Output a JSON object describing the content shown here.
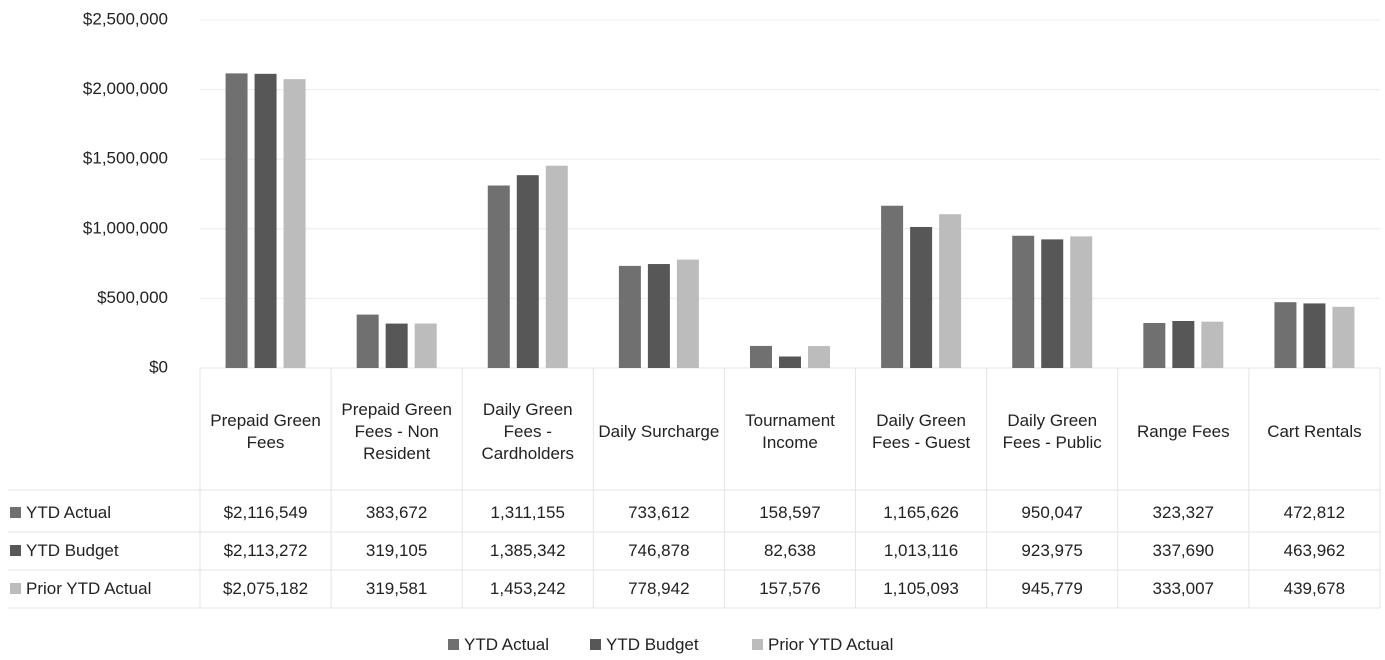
{
  "chart_data": {
    "type": "bar",
    "categories": [
      "Prepaid Green Fees",
      "Prepaid Green Fees - Non Resident",
      "Daily Green Fees - Cardholders",
      "Daily Surcharge",
      "Tournament Income",
      "Daily Green Fees - Guest",
      "Daily Green Fees - Public",
      "Range Fees",
      "Cart Rentals"
    ],
    "series": [
      {
        "name": "YTD Actual",
        "color": "#707070",
        "values": [
          2116549,
          383672,
          1311155,
          733612,
          158597,
          1165626,
          950047,
          323327,
          472812
        ],
        "value_labels": [
          "$2,116,549",
          "383,672",
          "1,311,155",
          "733,612",
          "158,597",
          "1,165,626",
          "950,047",
          "323,327",
          "472,812"
        ]
      },
      {
        "name": "YTD Budget",
        "color": "#575757",
        "values": [
          2113272,
          319105,
          1385342,
          746878,
          82638,
          1013116,
          923975,
          337690,
          463962
        ],
        "value_labels": [
          "$2,113,272",
          "319,105",
          "1,385,342",
          "746,878",
          "82,638",
          "1,013,116",
          "923,975",
          "337,690",
          "463,962"
        ]
      },
      {
        "name": "Prior YTD Actual",
        "color": "#bcbcbc",
        "values": [
          2075182,
          319581,
          1453242,
          778942,
          157576,
          1105093,
          945779,
          333007,
          439678
        ],
        "value_labels": [
          "$2,075,182",
          "319,581",
          "1,453,242",
          "778,942",
          "157,576",
          "1,105,093",
          "945,779",
          "333,007",
          "439,678"
        ]
      }
    ],
    "ylim": [
      0,
      2500000
    ],
    "yticks": [
      {
        "value": 0,
        "label": "$0"
      },
      {
        "value": 500000,
        "label": "$500,000"
      },
      {
        "value": 1000000,
        "label": "$1,000,000"
      },
      {
        "value": 1500000,
        "label": "$1,500,000"
      },
      {
        "value": 2000000,
        "label": "$2,000,000"
      },
      {
        "value": 2500000,
        "label": "$2,500,000"
      }
    ],
    "grid": true,
    "legend": "bottom"
  }
}
